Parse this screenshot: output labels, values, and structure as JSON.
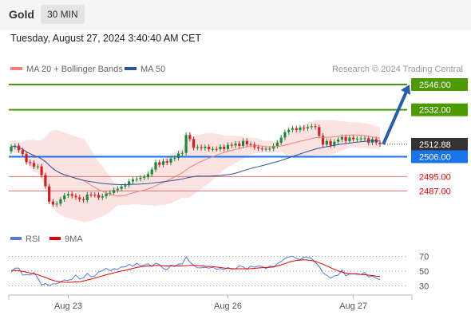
{
  "header": {
    "symbol": "Gold",
    "timeframe": "30 MIN"
  },
  "timestamp": "Tuesday, August 27, 2024 3:40:40 AM CET",
  "legend": {
    "ma20": "MA 20 + Bollinger Bands",
    "ma50": "MA 50",
    "credit": "Research © 2024 Trading Central"
  },
  "colors": {
    "ma20": "#f08080",
    "ma50": "#2a5599",
    "support": "#1a73e8",
    "resistance": "#4c9a00",
    "target_line": "#e57373",
    "arrow": "#2a5fa8",
    "rsi": "#5577dd",
    "rsi_ma": "#dd0000"
  },
  "chart_data": [
    {
      "type": "candlestick",
      "x_labels": [
        "Aug 23",
        "Aug 26",
        "Aug 27"
      ],
      "ylim": [
        2474,
        2552
      ],
      "open": [
        2509.0,
        2511.5,
        2512.1,
        2509.6,
        2507.5,
        2503.0,
        2502.5,
        2500.5,
        2500.6,
        2495.8,
        2489.6,
        2481.1,
        2479.5,
        2480.0,
        2482.4,
        2484.5,
        2485.3,
        2484.3,
        2483.5,
        2482.4,
        2481.9,
        2485.0,
        2484.9,
        2484.8,
        2483.4,
        2484.1,
        2485.6,
        2486.0,
        2487.5,
        2488.2,
        2489.5,
        2490.2,
        2492.3,
        2493.4,
        2493.7,
        2494.4,
        2494.8,
        2496.3,
        2498.9,
        2502.9,
        2501.5,
        2503.5,
        2502.7,
        2504.9,
        2505.3,
        2507.8,
        2508.1,
        2518.1,
        2515.8,
        2510.9,
        2511.3,
        2510.8,
        2511.5,
        2510.2,
        2510.3,
        2510.2,
        2511.5,
        2510.3,
        2512.6,
        2512.2,
        2513.3,
        2512.0,
        2514.8,
        2512.9,
        2512.7,
        2511.2,
        2510.6,
        2510.4,
        2510.4,
        2510.5,
        2512.0,
        2513.8,
        2516.6,
        2519.6,
        2520.9,
        2521.8,
        2520.8,
        2522.1,
        2521.7,
        2522.4,
        2522.9,
        2522.4,
        2517.6,
        2512.7,
        2514.7,
        2512.2,
        2514.3,
        2515.5,
        2516.9,
        2514.7,
        2516.6,
        2515.7,
        2515.9,
        2516.1,
        2516.2,
        2513.8,
        2515.8,
        2513.8
      ],
      "close": [
        2511.5,
        2512.1,
        2509.6,
        2507.5,
        2503.0,
        2502.5,
        2500.5,
        2500.6,
        2495.8,
        2489.6,
        2481.1,
        2479.5,
        2480.0,
        2482.4,
        2484.5,
        2485.3,
        2484.3,
        2483.5,
        2482.4,
        2481.9,
        2485.0,
        2484.9,
        2484.8,
        2483.4,
        2484.1,
        2485.6,
        2486.0,
        2487.5,
        2488.2,
        2489.5,
        2490.2,
        2492.3,
        2493.4,
        2493.7,
        2494.4,
        2494.8,
        2496.3,
        2498.9,
        2502.9,
        2501.5,
        2503.5,
        2502.7,
        2504.9,
        2505.3,
        2507.8,
        2508.1,
        2518.1,
        2515.8,
        2510.9,
        2511.3,
        2510.8,
        2511.5,
        2510.2,
        2510.3,
        2510.2,
        2511.5,
        2510.3,
        2512.6,
        2512.2,
        2513.3,
        2512.0,
        2514.8,
        2512.9,
        2512.7,
        2511.2,
        2510.6,
        2510.4,
        2510.4,
        2510.5,
        2512.0,
        2513.8,
        2516.6,
        2519.6,
        2520.9,
        2521.8,
        2520.8,
        2522.1,
        2521.7,
        2522.4,
        2522.9,
        2522.4,
        2517.6,
        2512.7,
        2514.7,
        2512.2,
        2514.3,
        2515.5,
        2516.9,
        2514.7,
        2516.6,
        2515.7,
        2515.9,
        2516.1,
        2516.2,
        2513.8,
        2515.8,
        2513.8,
        2512.9
      ],
      "levels": [
        {
          "label": "2546.00",
          "value": 2546.0,
          "role": "resistance"
        },
        {
          "label": "2532.00",
          "value": 2532.0,
          "role": "resistance"
        },
        {
          "label": "2512.88",
          "value": 2512.88,
          "role": "last"
        },
        {
          "label": "2506.00",
          "value": 2506.0,
          "role": "support"
        },
        {
          "label": "2495.00",
          "value": 2495.0,
          "role": "target"
        },
        {
          "label": "2487.00",
          "value": 2487.0,
          "role": "target"
        }
      ],
      "arrow": {
        "from": 2512.88,
        "to": 2546.0,
        "direction": "up"
      }
    },
    {
      "type": "line",
      "legend": [
        "RSI",
        "9MA"
      ],
      "y_ticks": [
        "70",
        "50",
        "30"
      ],
      "ylim": [
        20,
        80
      ],
      "series": [
        {
          "name": "RSI",
          "values": [
            48.4,
            54.0,
            54.2,
            44.5,
            45.4,
            44.6,
            48.0,
            40.6,
            31.1,
            33.3,
            30.2,
            32.8,
            32.8,
            35.5,
            38.0,
            37.6,
            39.1,
            44.9,
            39.2,
            40.7,
            47.0,
            42.2,
            43.6,
            48.7,
            50.5,
            54.0,
            50.5,
            53.3,
            52.4,
            55.8,
            55.7,
            59.4,
            56.7,
            60.7,
            57.5,
            58.2,
            60.1,
            56.2,
            60.9,
            58.9,
            53.5,
            51.9,
            58.2,
            56.2,
            59.7,
            59.7,
            69.3,
            62.4,
            57.8,
            54.6,
            54.4,
            55.3,
            54.1,
            55.3,
            52.6,
            53.5,
            52.2,
            55.0,
            52.8,
            53.1,
            57.1,
            56.0,
            52.3,
            56.9,
            55.3,
            57.0,
            56.5,
            53.5,
            57.0,
            55.1,
            60.3,
            63.0,
            67.3,
            69.1,
            70.4,
            67.4,
            65.6,
            68.9,
            68.6,
            67.3,
            62.0,
            56.4,
            47.8,
            44.3,
            40.6,
            43.6,
            44.6,
            51.7,
            43.7,
            46.3,
            46.3,
            46.7,
            45.3,
            48.3,
            42.1,
            43.4,
            40.4,
            38.3
          ]
        },
        {
          "name": "9MA",
          "values": [
            50.9,
            51.1,
            50.6,
            49.7,
            48.7,
            47.5,
            46.4,
            45.1,
            43.3,
            41.5,
            39.3,
            37.6,
            36.3,
            35.4,
            35.0,
            34.9,
            35.0,
            35.5,
            35.7,
            36.6,
            38.0,
            39.2,
            40.5,
            42.1,
            43.5,
            45.1,
            46.3,
            47.5,
            48.9,
            50.1,
            51.1,
            52.6,
            53.7,
            55.0,
            55.8,
            56.5,
            57.1,
            57.3,
            57.7,
            57.7,
            57.3,
            57.0,
            57.1,
            57.0,
            57.0,
            57.2,
            57.5,
            57.8,
            57.8,
            57.6,
            57.1,
            56.6,
            56.4,
            56.2,
            55.6,
            55.0,
            54.2,
            53.7,
            53.4,
            53.2,
            53.2,
            53.3,
            53.2,
            53.4,
            53.8,
            54.3,
            54.7,
            54.9,
            55.2,
            56.0,
            57.2,
            58.5,
            60.2,
            62.2,
            63.5,
            64.4,
            65.0,
            65.4,
            65.0,
            64.4,
            63.1,
            61.3,
            59.4,
            57.1,
            54.7,
            52.4,
            50.3,
            48.9,
            47.4,
            46.6,
            46.3,
            45.9,
            45.6,
            45.2,
            44.6,
            44.1,
            43.2,
            42.7
          ]
        }
      ]
    }
  ]
}
